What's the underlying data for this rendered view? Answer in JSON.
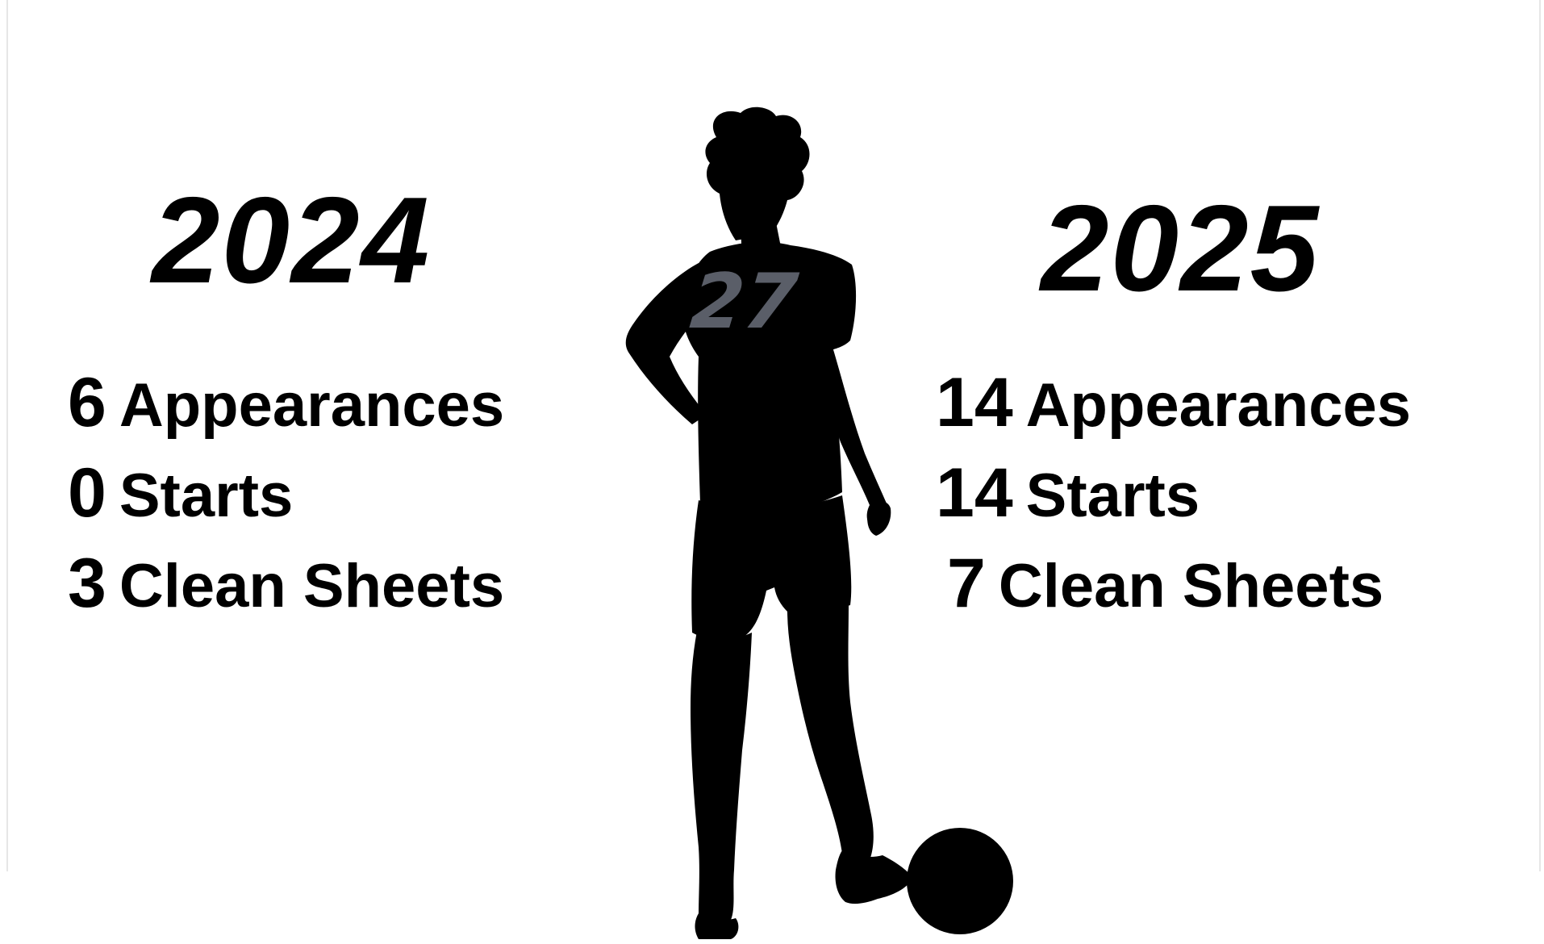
{
  "seasons": [
    {
      "year": "2024",
      "appearances": {
        "value": "6",
        "label": "Appearances"
      },
      "starts": {
        "value": "0",
        "label": "Starts"
      },
      "clean_sheets": {
        "value": "3",
        "label": "Clean Sheets"
      }
    },
    {
      "year": "2025",
      "appearances": {
        "value": "14",
        "label": "Appearances"
      },
      "starts": {
        "value": "14",
        "label": "Starts"
      },
      "clean_sheets": {
        "value": "7",
        "label": "Clean Sheets"
      }
    }
  ],
  "player": {
    "jersey_number": "27",
    "silhouette_color": "#000000",
    "number_color": "#5a5e68"
  }
}
